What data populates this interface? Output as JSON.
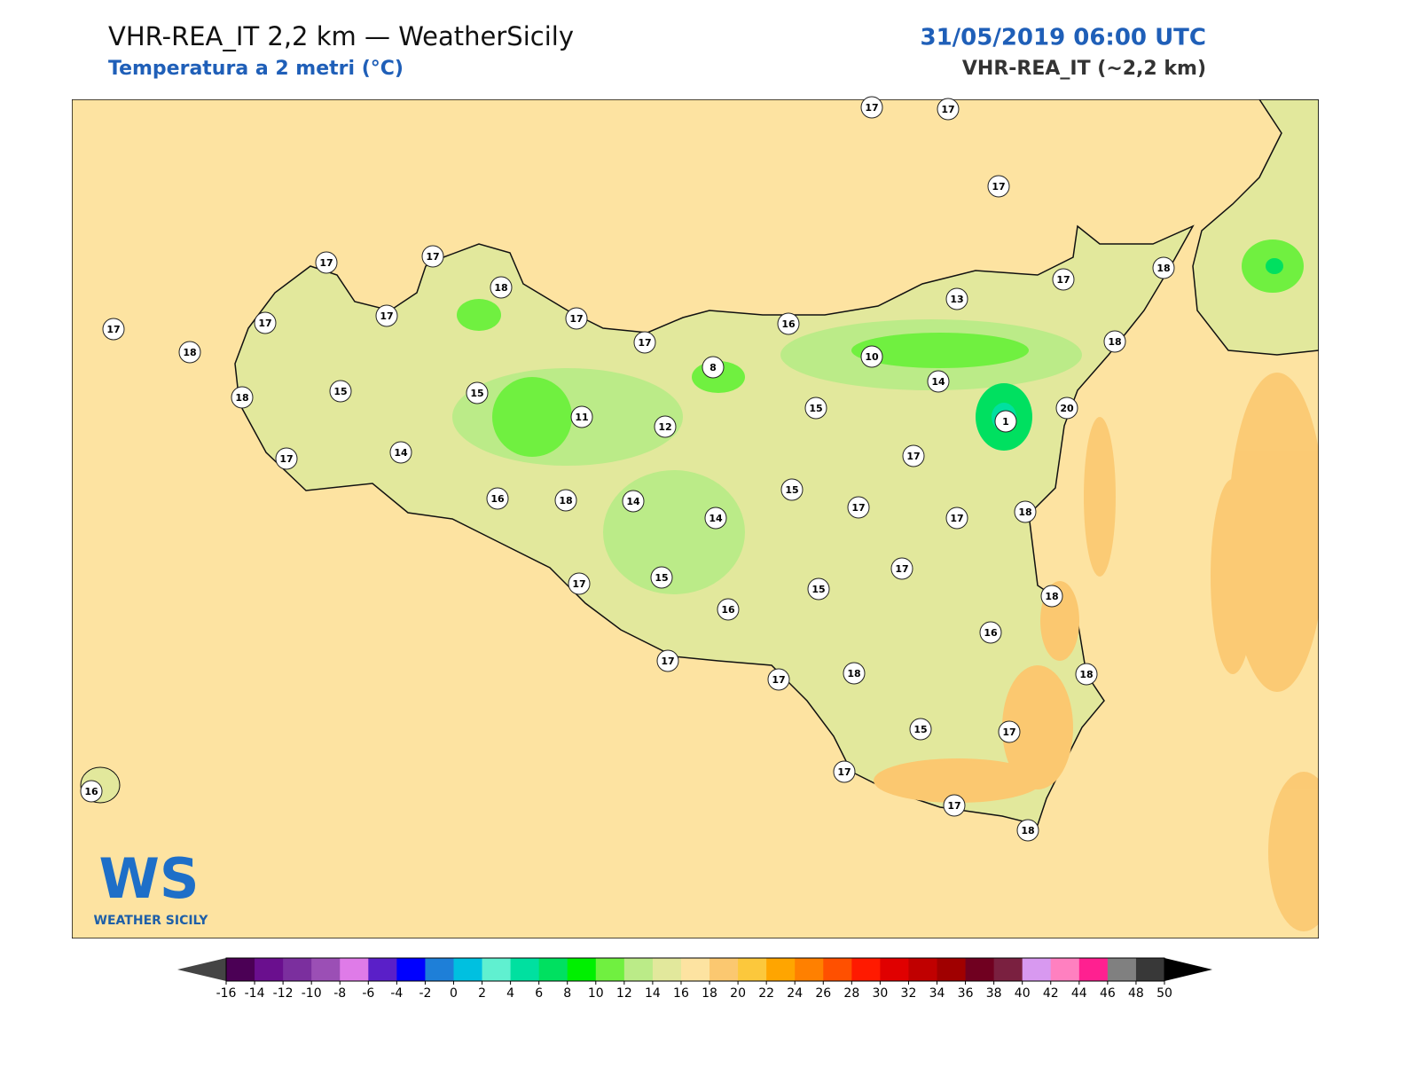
{
  "header": {
    "title": "VHR-REA_IT 2,2 km — WeatherSicily",
    "subtitle": "Temperatura a 2 metri (°C)",
    "date": "31/05/2019 06:00 UTC",
    "model": "VHR-REA_IT (~2,2 km)"
  },
  "stations": [
    17,
    17,
    17,
    17,
    17,
    18,
    18,
    17,
    13,
    17,
    17,
    17,
    17,
    17,
    16,
    18,
    18,
    8,
    10,
    14,
    15,
    15,
    18,
    15,
    11,
    12,
    1,
    20,
    14,
    17,
    17,
    16,
    18,
    14,
    15,
    14,
    17,
    17,
    18,
    17,
    17,
    15,
    15,
    16,
    18,
    16,
    17,
    17,
    18,
    18,
    15,
    17,
    17,
    17,
    18,
    16
  ],
  "colorbar": {
    "ticks": [
      -16,
      -14,
      -12,
      -10,
      -8,
      -6,
      -4,
      -2,
      0,
      2,
      4,
      6,
      8,
      10,
      12,
      14,
      16,
      18,
      20,
      22,
      24,
      26,
      28,
      30,
      32,
      34,
      36,
      38,
      40,
      42,
      44,
      46,
      48,
      50
    ],
    "colors": [
      "#4b0055",
      "#6a0f8e",
      "#7b2f9e",
      "#9b4fb5",
      "#df7be8",
      "#5a1fc8",
      "#0000ff",
      "#1e7fd8",
      "#00c0e0",
      "#60f0d0",
      "#00e0a0",
      "#00e060",
      "#00f000",
      "#70f040",
      "#bbeb88",
      "#e2e89c",
      "#fde3a1",
      "#fbc870",
      "#fcc83c",
      "#ffa500",
      "#ff8000",
      "#ff5000",
      "#ff1a00",
      "#e00000",
      "#c00000",
      "#a00000",
      "#700020",
      "#7a2040",
      "#d899f0",
      "#ff80c0",
      "#ff2090",
      "#808080",
      "#383838"
    ],
    "under_color": "#444444",
    "over_color": "#000000"
  },
  "logo": {
    "mark": "WS",
    "name": "WEATHER SICILY"
  }
}
